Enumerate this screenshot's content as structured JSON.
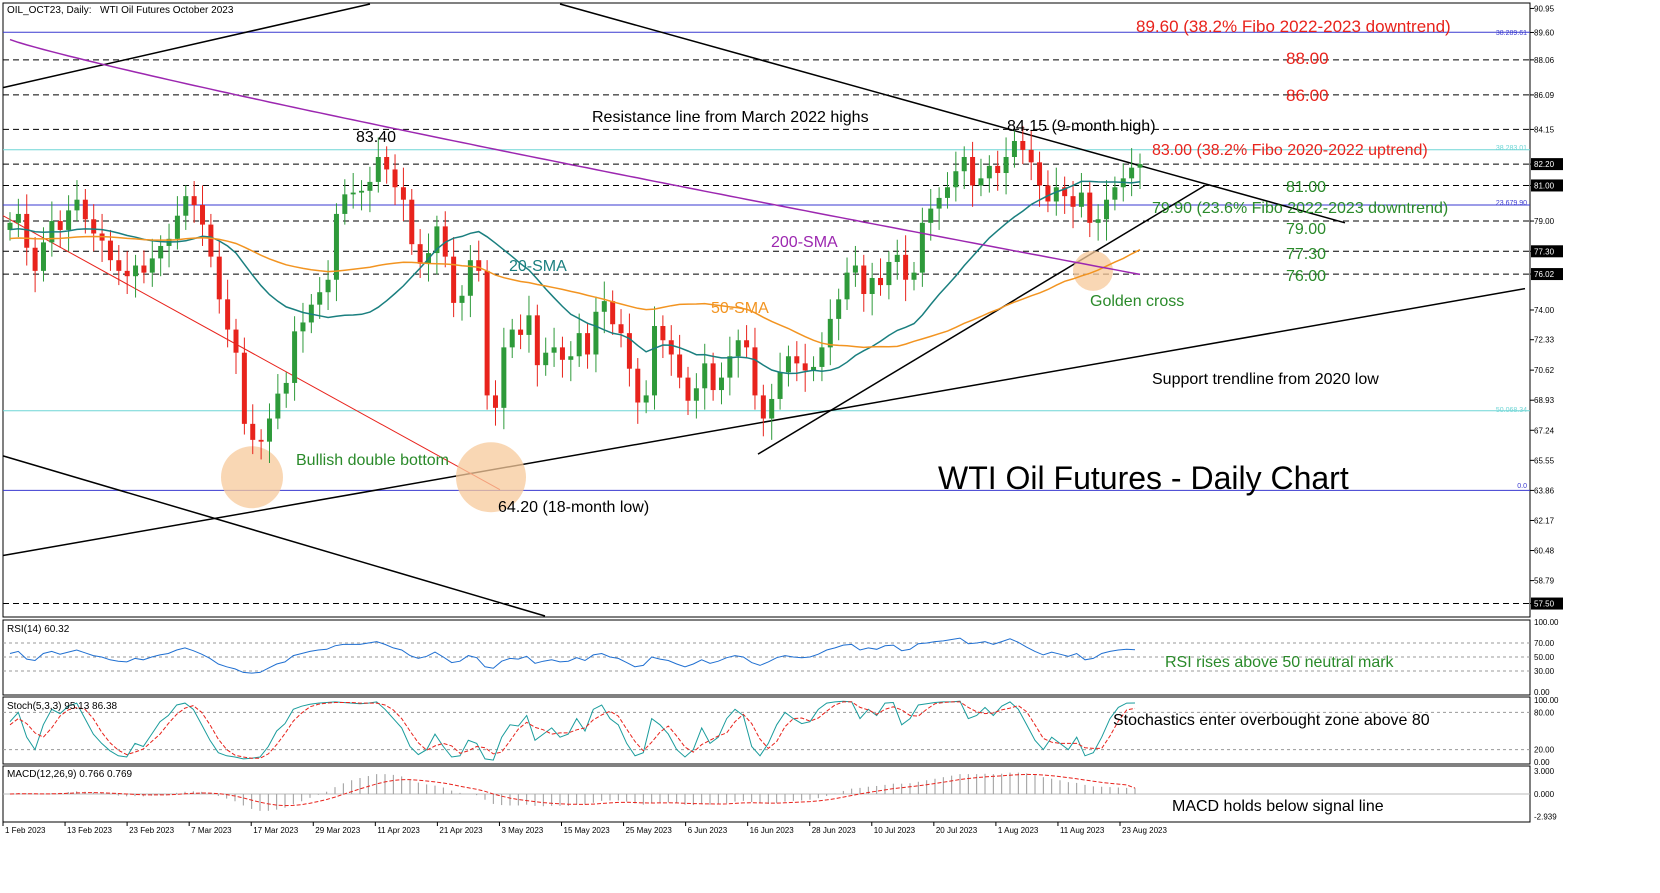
{
  "header": {
    "symbol": "OIL_OCT23, Daily:",
    "description": "WTI Oil Futures October 2023"
  },
  "title": "WTI Oil Futures - Daily Chart",
  "colors": {
    "bull": "#2e9a3a",
    "bear": "#e8231c",
    "sma20": "#1a7f7f",
    "sma50": "#f29421",
    "sma200": "#9c27b0",
    "fibo_line": "#3a3ad0",
    "fibo_cyan": "#6fd6d6",
    "annotation_red": "#e8231c",
    "annotation_green": "#2a8a2a",
    "circle_fill": "#f7c99b"
  },
  "chart_data": [
    {
      "type": "candlestick",
      "panel": "main",
      "title": "WTI Oil Futures - Daily Chart",
      "ylim": [
        56.8,
        91.2
      ],
      "x_ticks": [
        "1 Feb 2023",
        "13 Feb 2023",
        "23 Feb 2023",
        "7 Mar 2023",
        "17 Mar 2023",
        "29 Mar 2023",
        "11 Apr 2023",
        "21 Apr 2023",
        "3 May 2023",
        "15 May 2023",
        "25 May 2023",
        "6 Jun 2023",
        "16 Jun 2023",
        "28 Jun 2023",
        "10 Jul 2023",
        "20 Jul 2023",
        "1 Aug 2023",
        "11 Aug 2023",
        "23 Aug 2023"
      ],
      "y_ticks": [
        "90.95",
        "89.60",
        "88.06",
        "86.09",
        "84.15",
        "82.20",
        "81.00",
        "79.00",
        "77.30",
        "76.02",
        "74.00",
        "72.33",
        "70.62",
        "68.93",
        "67.24",
        "65.55",
        "63.86",
        "62.17",
        "60.48",
        "58.79",
        "57.50"
      ],
      "closes": [
        78.9,
        79.4,
        77.5,
        76.2,
        77.8,
        79.0,
        78.5,
        79.6,
        80.2,
        79.1,
        78.3,
        77.9,
        76.8,
        76.2,
        75.9,
        76.5,
        76.1,
        76.9,
        77.6,
        78.0,
        79.3,
        80.4,
        79.9,
        78.8,
        77.0,
        74.6,
        72.9,
        71.6,
        67.6,
        66.7,
        66.6,
        67.9,
        69.3,
        69.9,
        72.8,
        73.3,
        74.3,
        75.0,
        75.7,
        79.4,
        80.5,
        80.6,
        80.7,
        81.2,
        82.6,
        81.9,
        80.9,
        80.2,
        77.7,
        76.6,
        77.2,
        78.7,
        77.0,
        74.4,
        74.8,
        76.8,
        76.2,
        69.2,
        68.5,
        71.9,
        72.9,
        72.6,
        73.7,
        70.9,
        71.6,
        71.9,
        71.2,
        71.4,
        72.7,
        71.5,
        73.9,
        74.5,
        73.2,
        72.7,
        70.7,
        68.8,
        69.2,
        73.1,
        72.3,
        71.5,
        70.2,
        68.9,
        69.6,
        71.0,
        69.5,
        70.2,
        71.4,
        72.3,
        71.9,
        69.2,
        67.9,
        69.0,
        70.5,
        71.4,
        71.0,
        70.6,
        70.8,
        71.9,
        73.5,
        74.6,
        76.1,
        76.5,
        74.9,
        75.8,
        75.4,
        76.7,
        77.1,
        75.7,
        76.1,
        78.9,
        79.7,
        80.3,
        80.9,
        81.8,
        82.6,
        81.0,
        81.4,
        82.1,
        81.7,
        82.6,
        83.5,
        83.0,
        82.3,
        81.0,
        80.1,
        80.9,
        80.4,
        79.8,
        80.6,
        78.9,
        79.1,
        80.2,
        80.9,
        81.4,
        82.0,
        82.2
      ],
      "markers": {
        "high_83_40": "83.40",
        "high_84_15": "84.15 (9-month high)",
        "low_64_20": "64.20 (18-month low)"
      }
    },
    {
      "type": "line",
      "panel": "rsi",
      "label": "RSI(14) 60.32",
      "y_ticks": [
        "100.00",
        "70.00",
        "50.00",
        "30.00",
        "0.00"
      ],
      "ylim": [
        0,
        100
      ],
      "values": [
        55,
        58,
        47,
        45,
        55,
        58,
        54,
        57,
        60,
        56,
        52,
        50,
        46,
        44,
        43,
        48,
        46,
        50,
        53,
        55,
        60,
        63,
        59,
        54,
        48,
        40,
        36,
        33,
        28,
        27,
        28,
        34,
        40,
        43,
        52,
        55,
        58,
        60,
        61,
        66,
        68,
        68,
        68,
        70,
        72,
        68,
        63,
        60,
        52,
        48,
        51,
        57,
        50,
        42,
        44,
        52,
        49,
        36,
        34,
        44,
        48,
        47,
        51,
        41,
        44,
        46,
        43,
        44,
        49,
        45,
        53,
        55,
        50,
        48,
        42,
        36,
        38,
        50,
        47,
        45,
        40,
        36,
        40,
        46,
        41,
        44,
        49,
        52,
        50,
        42,
        38,
        43,
        49,
        52,
        50,
        49,
        50,
        54,
        60,
        63,
        67,
        68,
        60,
        63,
        61,
        66,
        67,
        59,
        61,
        69,
        70,
        72,
        73,
        75,
        77,
        69,
        70,
        72,
        68,
        72,
        76,
        71,
        64,
        58,
        53,
        57,
        54,
        51,
        55,
        46,
        48,
        55,
        58,
        60,
        61,
        60.32
      ]
    },
    {
      "type": "line",
      "panel": "stochastic",
      "label": "Stoch(5,3,3) 95.13 86.38",
      "y_ticks": [
        "100.00",
        "80.00",
        "20.00",
        "0.00"
      ],
      "ylim": [
        0,
        100
      ],
      "series": [
        {
          "name": "%K",
          "values": [
            65,
            80,
            40,
            20,
            60,
            85,
            78,
            90,
            95,
            70,
            45,
            30,
            18,
            10,
            8,
            30,
            25,
            45,
            65,
            75,
            92,
            95,
            85,
            60,
            35,
            15,
            10,
            8,
            5,
            6,
            8,
            25,
            50,
            62,
            85,
            90,
            93,
            95,
            96,
            97,
            96,
            95,
            94,
            95,
            97,
            85,
            70,
            55,
            25,
            12,
            20,
            45,
            25,
            8,
            10,
            35,
            30,
            5,
            3,
            40,
            60,
            58,
            75,
            35,
            45,
            55,
            40,
            45,
            70,
            50,
            85,
            92,
            70,
            60,
            30,
            10,
            15,
            70,
            60,
            45,
            20,
            8,
            20,
            55,
            30,
            40,
            70,
            85,
            75,
            25,
            10,
            30,
            60,
            80,
            70,
            62,
            65,
            85,
            95,
            97,
            98,
            97,
            70,
            85,
            75,
            95,
            96,
            60,
            70,
            92,
            94,
            96,
            97,
            97,
            98,
            70,
            75,
            88,
            75,
            90,
            97,
            85,
            60,
            35,
            20,
            40,
            30,
            20,
            40,
            10,
            15,
            40,
            70,
            88,
            95,
            95.13
          ]
        },
        {
          "name": "%D",
          "values": [
            60,
            70,
            62,
            47,
            40,
            55,
            74,
            84,
            88,
            85,
            70,
            48,
            31,
            19,
            12,
            16,
            21,
            33,
            45,
            62,
            77,
            87,
            91,
            80,
            60,
            37,
            20,
            11,
            8,
            6,
            6,
            13,
            28,
            46,
            66,
            79,
            89,
            93,
            95,
            96,
            96,
            96,
            95,
            95,
            95,
            92,
            84,
            70,
            50,
            31,
            19,
            26,
            30,
            26,
            14,
            18,
            25,
            23,
            13,
            16,
            34,
            53,
            64,
            56,
            52,
            45,
            47,
            47,
            52,
            55,
            68,
            76,
            82,
            74,
            53,
            33,
            18,
            32,
            48,
            58,
            42,
            24,
            16,
            28,
            35,
            42,
            47,
            65,
            77,
            62,
            37,
            22,
            33,
            57,
            70,
            71,
            66,
            71,
            82,
            92,
            97,
            97,
            88,
            84,
            77,
            85,
            89,
            84,
            75,
            74,
            85,
            94,
            96,
            97,
            97,
            88,
            81,
            78,
            79,
            84,
            87,
            91,
            81,
            60,
            38,
            32,
            30,
            30,
            30,
            23,
            22,
            22,
            42,
            66,
            84,
            86.38
          ]
        }
      ]
    },
    {
      "type": "bar",
      "panel": "macd",
      "label": "MACD(12,26,9) 0.766 0.769",
      "y_ticks": [
        "3.000",
        "0.000",
        "-2.939"
      ],
      "ylim": [
        -3.4,
        3.4
      ],
      "series": [
        {
          "name": "MACD",
          "values": [
            0.05,
            0.12,
            0.08,
            -0.05,
            -0.02,
            0.1,
            0.15,
            0.25,
            0.35,
            0.3,
            0.2,
            0.1,
            -0.05,
            -0.2,
            -0.3,
            -0.28,
            -0.3,
            -0.22,
            -0.12,
            -0.02,
            0.15,
            0.3,
            0.35,
            0.28,
            0.1,
            -0.25,
            -0.6,
            -0.95,
            -1.5,
            -1.95,
            -2.2,
            -2.2,
            -2.05,
            -1.8,
            -1.35,
            -0.95,
            -0.5,
            -0.1,
            0.3,
            0.9,
            1.4,
            1.8,
            2.1,
            2.35,
            2.6,
            2.6,
            2.5,
            2.3,
            1.9,
            1.5,
            1.25,
            1.1,
            0.85,
            0.45,
            0.15,
            0.0,
            -0.15,
            -0.75,
            -1.3,
            -1.45,
            -1.5,
            -1.5,
            -1.4,
            -1.55,
            -1.6,
            -1.55,
            -1.55,
            -1.55,
            -1.4,
            -1.4,
            -1.15,
            -0.9,
            -0.85,
            -0.85,
            -1.0,
            -1.25,
            -1.4,
            -1.2,
            -1.1,
            -1.1,
            -1.2,
            -1.4,
            -1.45,
            -1.35,
            -1.4,
            -1.35,
            -1.2,
            -1.0,
            -0.9,
            -1.05,
            -1.25,
            -1.3,
            -1.2,
            -1.0,
            -0.9,
            -0.85,
            -0.75,
            -0.55,
            -0.25,
            0.05,
            0.4,
            0.7,
            0.8,
            0.95,
            1.05,
            1.2,
            1.35,
            1.35,
            1.4,
            1.6,
            1.8,
            2.0,
            2.2,
            2.4,
            2.6,
            2.6,
            2.6,
            2.65,
            2.6,
            2.65,
            2.8,
            2.8,
            2.7,
            2.5,
            2.2,
            2.0,
            1.8,
            1.55,
            1.45,
            1.2,
            1.0,
            0.95,
            0.9,
            0.85,
            0.8,
            0.766
          ]
        },
        {
          "name": "Signal",
          "values": [
            0.0,
            0.03,
            0.04,
            0.02,
            0.01,
            0.03,
            0.05,
            0.09,
            0.14,
            0.17,
            0.18,
            0.16,
            0.12,
            0.06,
            0.0,
            -0.05,
            -0.1,
            -0.12,
            -0.12,
            -0.1,
            -0.05,
            0.02,
            0.09,
            0.13,
            0.12,
            0.05,
            -0.08,
            -0.26,
            -0.51,
            -0.8,
            -1.07,
            -1.3,
            -1.45,
            -1.52,
            -1.49,
            -1.38,
            -1.2,
            -0.98,
            -0.72,
            -0.4,
            -0.04,
            0.32,
            0.67,
            1.0,
            1.32,
            1.58,
            1.76,
            1.87,
            1.88,
            1.8,
            1.7,
            1.58,
            1.44,
            1.24,
            1.02,
            0.81,
            0.62,
            0.35,
            0.0,
            -0.29,
            -0.53,
            -0.72,
            -0.86,
            -1.0,
            -1.12,
            -1.21,
            -1.28,
            -1.34,
            -1.35,
            -1.36,
            -1.32,
            -1.24,
            -1.16,
            -1.1,
            -1.08,
            -1.11,
            -1.17,
            -1.18,
            -1.16,
            -1.15,
            -1.16,
            -1.21,
            -1.26,
            -1.28,
            -1.3,
            -1.31,
            -1.29,
            -1.23,
            -1.16,
            -1.14,
            -1.16,
            -1.19,
            -1.19,
            -1.15,
            -1.1,
            -1.05,
            -0.99,
            -0.9,
            -0.77,
            -0.61,
            -0.41,
            -0.19,
            0.01,
            0.2,
            0.37,
            0.54,
            0.7,
            0.83,
            0.94,
            1.07,
            1.22,
            1.37,
            1.54,
            1.71,
            1.89,
            2.03,
            2.14,
            2.24,
            2.31,
            2.38,
            2.46,
            2.53,
            2.56,
            2.55,
            2.48,
            2.39,
            2.27,
            2.13,
            1.99,
            1.83,
            1.67,
            1.52,
            1.4,
            1.29,
            1.19,
            0.769
          ]
        }
      ]
    }
  ],
  "labels": {
    "fibo_89_60": "89.60 (38.2% Fibo 2022-2023 downtrend)",
    "level_88": "88.00",
    "level_86": "86.00",
    "resistance_line": "Resistance line from March 2022 highs",
    "fibo_83_00": "83.00 (38.2% Fibo 2020-2022 uptrend)",
    "level_81": "81.00",
    "fibo_79_90": "79.90 (23.6% Fibo 2022-2023 downtrend)",
    "level_79": "79.00",
    "level_77_30": "77.30",
    "level_76": "76.00",
    "golden_cross": "Golden cross",
    "sma200": "200-SMA",
    "sma20": "20-SMA",
    "sma50": "50-SMA",
    "support_trendline": "Support trendline from 2020 low",
    "double_bottom": "Bullish double bottom",
    "rsi_note": "RSI rises above 50 neutral mark",
    "stoch_note": "Stochastics enter overbought zone above 80",
    "macd_note": "MACD holds below signal line"
  },
  "fibo_tags": {
    "f1": "38.289.61",
    "f2": "38.283.01",
    "f3": "23.679.90",
    "f4": "50.068.34",
    "f5": "0.0"
  }
}
